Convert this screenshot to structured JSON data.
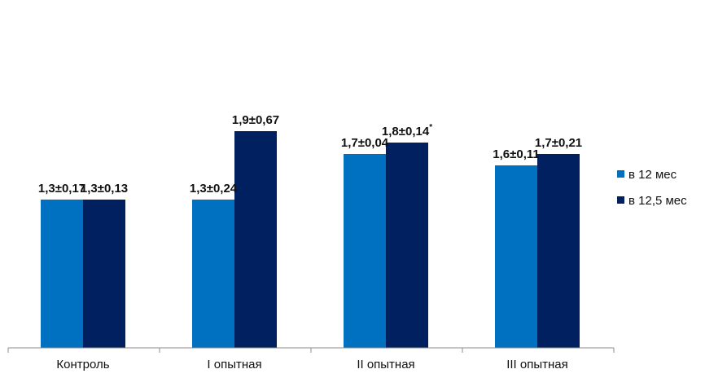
{
  "chart_data": {
    "type": "bar",
    "title": "",
    "xlabel": "",
    "ylabel": "",
    "categories": [
      "Контроль",
      "I опытная",
      "II опытная",
      "III опытная"
    ],
    "ylim": [
      0,
      2.0
    ],
    "grid": false,
    "legend_position": "right",
    "series": [
      {
        "name": "в 12 мес",
        "color": "#0070C0",
        "values": [
          1.3,
          1.3,
          1.7,
          1.6
        ],
        "labels": [
          "1,3±0,17",
          "1,3±0,24",
          "1,7±0,04",
          "1,6±0,11"
        ],
        "label_superscripts": [
          "",
          "",
          "",
          ""
        ]
      },
      {
        "name": "в 12,5 мес",
        "color": "#002060",
        "values": [
          1.3,
          1.9,
          1.8,
          1.7
        ],
        "labels": [
          "1,3±0,13",
          "1,9±0,67",
          "1,8±0,14",
          "1,7±0,21"
        ],
        "label_superscripts": [
          "",
          "",
          "*",
          ""
        ]
      }
    ]
  }
}
